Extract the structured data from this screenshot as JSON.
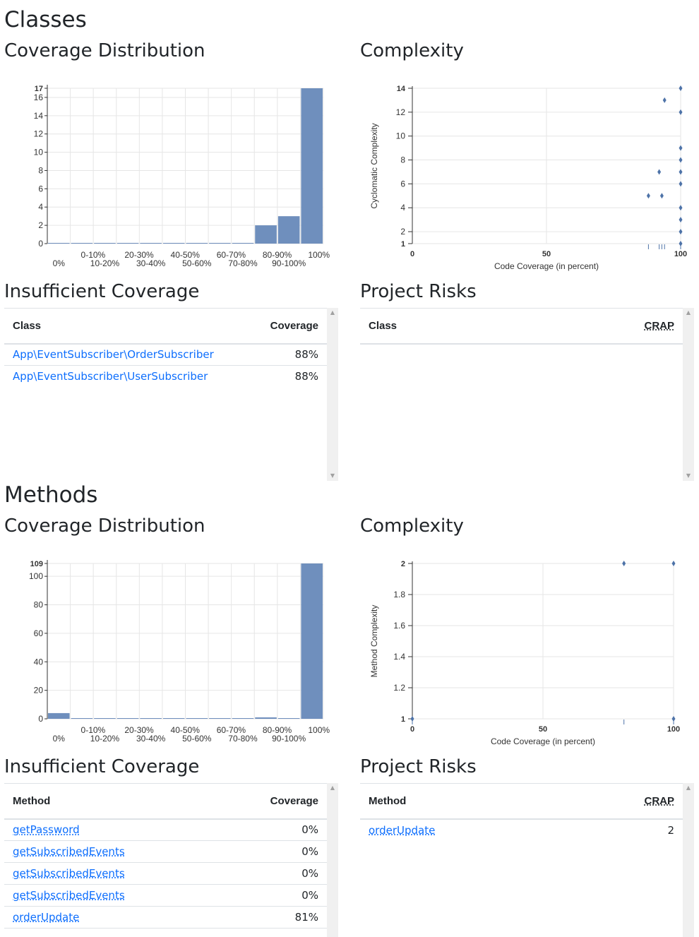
{
  "classes": {
    "heading": "Classes",
    "coverage_title": "Coverage Distribution",
    "complexity_title": "Complexity",
    "insufficient_title": "Insufficient Coverage",
    "risks_title": "Project Risks",
    "insufficient_table": {
      "headers": [
        "Class",
        "Coverage"
      ],
      "rows": [
        {
          "name": "App\\EventSubscriber\\OrderSubscriber",
          "coverage": "88%"
        },
        {
          "name": "App\\EventSubscriber\\UserSubscriber",
          "coverage": "88%"
        }
      ]
    },
    "risks_table": {
      "headers": [
        "Class",
        "CRAP"
      ],
      "rows": []
    }
  },
  "methods": {
    "heading": "Methods",
    "coverage_title": "Coverage Distribution",
    "complexity_title": "Complexity",
    "insufficient_title": "Insufficient Coverage",
    "risks_title": "Project Risks",
    "insufficient_table": {
      "headers": [
        "Method",
        "Coverage"
      ],
      "rows": [
        {
          "name": "getPassword",
          "coverage": "0%"
        },
        {
          "name": "getSubscribedEvents",
          "coverage": "0%"
        },
        {
          "name": "getSubscribedEvents",
          "coverage": "0%"
        },
        {
          "name": "getSubscribedEvents",
          "coverage": "0%"
        },
        {
          "name": "orderUpdate",
          "coverage": "81%"
        }
      ]
    },
    "risks_table": {
      "headers": [
        "Method",
        "CRAP"
      ],
      "rows": [
        {
          "name": "orderUpdate",
          "crap": "2"
        }
      ]
    }
  },
  "chart_data": [
    {
      "id": "classes-coverage",
      "type": "bar",
      "categories": [
        "0%",
        "0-10%",
        "10-20%",
        "20-30%",
        "30-40%",
        "40-50%",
        "50-60%",
        "60-70%",
        "70-80%",
        "80-90%",
        "90-100%",
        "100%"
      ],
      "values": [
        0,
        0,
        0,
        0,
        0,
        0,
        0,
        0,
        0,
        2,
        3,
        17
      ],
      "yticks": [
        0,
        2,
        4,
        6,
        8,
        10,
        12,
        14,
        16,
        17
      ],
      "ylim": [
        0,
        17
      ],
      "color": "#6f8fbd"
    },
    {
      "id": "classes-complexity",
      "type": "scatter",
      "xlabel": "Code Coverage (in percent)",
      "ylabel": "Cyclomatic Complexity",
      "xticks": [
        0,
        50,
        100
      ],
      "yticks": [
        1,
        2,
        4,
        6,
        8,
        10,
        12,
        14
      ],
      "xlim": [
        0,
        100
      ],
      "ylim": [
        1,
        14
      ],
      "points": [
        {
          "x": 100,
          "y": 14
        },
        {
          "x": 94,
          "y": 13
        },
        {
          "x": 100,
          "y": 12
        },
        {
          "x": 100,
          "y": 9
        },
        {
          "x": 100,
          "y": 8
        },
        {
          "x": 92,
          "y": 7
        },
        {
          "x": 100,
          "y": 7
        },
        {
          "x": 100,
          "y": 6
        },
        {
          "x": 88,
          "y": 5
        },
        {
          "x": 93,
          "y": 5
        },
        {
          "x": 100,
          "y": 4
        },
        {
          "x": 100,
          "y": 3
        },
        {
          "x": 100,
          "y": 2
        },
        {
          "x": 100,
          "y": 1
        }
      ],
      "color": "#4e73a8"
    },
    {
      "id": "methods-coverage",
      "type": "bar",
      "categories": [
        "0%",
        "0-10%",
        "10-20%",
        "20-30%",
        "30-40%",
        "40-50%",
        "50-60%",
        "60-70%",
        "70-80%",
        "80-90%",
        "90-100%",
        "100%"
      ],
      "values": [
        4,
        0,
        0,
        0,
        0,
        0,
        0,
        0,
        0,
        1,
        0,
        109
      ],
      "yticks": [
        0,
        20,
        40,
        60,
        80,
        100,
        109
      ],
      "ylim": [
        0,
        109
      ],
      "color": "#6f8fbd"
    },
    {
      "id": "methods-complexity",
      "type": "scatter",
      "xlabel": "Code Coverage (in percent)",
      "ylabel": "Method Complexity",
      "xticks": [
        0,
        50,
        100
      ],
      "yticks": [
        1,
        1.2,
        1.4,
        1.6,
        1.8,
        2
      ],
      "xlim": [
        0,
        100
      ],
      "ylim": [
        1,
        2
      ],
      "points": [
        {
          "x": 81,
          "y": 2
        },
        {
          "x": 100,
          "y": 2
        },
        {
          "x": 0,
          "y": 1
        },
        {
          "x": 100,
          "y": 1
        }
      ],
      "color": "#4e73a8"
    }
  ]
}
